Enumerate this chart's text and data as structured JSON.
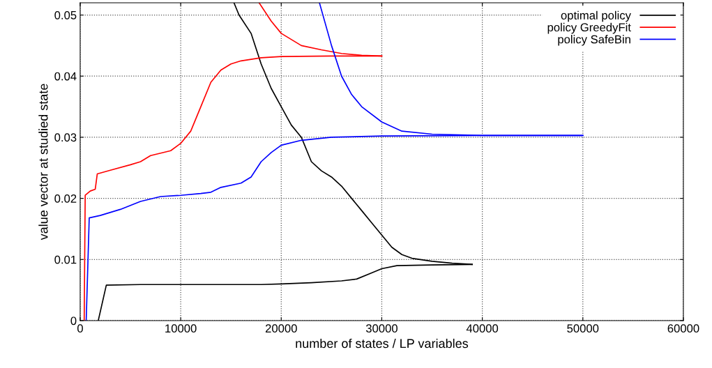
{
  "chart_data": {
    "type": "line",
    "xlabel": "number of states / LP variables",
    "ylabel": "value vector at studied state",
    "xlim": [
      0,
      60000
    ],
    "ylim": [
      0,
      0.052
    ],
    "xticks": [
      0,
      10000,
      20000,
      30000,
      40000,
      50000,
      60000
    ],
    "yticks": [
      {
        "value": 0,
        "label": "0"
      },
      {
        "value": 0.01,
        "label": "0.01"
      },
      {
        "value": 0.02,
        "label": "0.02"
      },
      {
        "value": 0.03,
        "label": "0.03"
      },
      {
        "value": 0.04,
        "label": "0.04"
      },
      {
        "value": 0.05,
        "label": "0.05"
      }
    ],
    "grid": true,
    "legend": "top right",
    "line_style": "solid",
    "marker": "none",
    "series": [
      {
        "name": "optimal policy",
        "color": "#000000",
        "x": [
          1800,
          2600,
          6000,
          10000,
          15000,
          18000,
          20000,
          23000,
          26000,
          27500,
          29000,
          30000,
          31500,
          35000,
          39000
        ],
        "values": [
          0,
          0.0058,
          0.0059,
          0.0059,
          0.0059,
          0.0059,
          0.006,
          0.0062,
          0.0065,
          0.0068,
          0.0078,
          0.0085,
          0.009,
          0.0091,
          0.0092
        ]
      },
      {
        "color": "#000000",
        "x": [
          15300,
          15800,
          17000,
          18000,
          19000,
          20000,
          21000,
          22000,
          23000,
          24000,
          25000,
          26000,
          27000,
          28000,
          29000,
          30000,
          31000,
          32000,
          33000,
          35000,
          37000,
          39000
        ],
        "values": [
          0.052,
          0.05,
          0.047,
          0.042,
          0.038,
          0.035,
          0.032,
          0.03,
          0.026,
          0.0245,
          0.0235,
          0.022,
          0.02,
          0.018,
          0.016,
          0.014,
          0.012,
          0.0108,
          0.0102,
          0.0097,
          0.0094,
          0.0092
        ]
      },
      {
        "name": "policy GreedyFit",
        "color": "#ff0000",
        "x": [
          400,
          500,
          1000,
          1500,
          1700,
          3000,
          5000,
          6000,
          7000,
          9000,
          10000,
          11000,
          12000,
          13000,
          14000,
          15000,
          16000,
          18000,
          20000,
          25000,
          30000
        ],
        "values": [
          0,
          0.0205,
          0.0212,
          0.0215,
          0.024,
          0.0246,
          0.0255,
          0.026,
          0.027,
          0.0278,
          0.029,
          0.031,
          0.035,
          0.039,
          0.041,
          0.042,
          0.0425,
          0.043,
          0.0432,
          0.0433,
          0.0433
        ]
      },
      {
        "color": "#ff0000",
        "x": [
          17800,
          19000,
          20000,
          22000,
          24000,
          26000,
          28000,
          30000
        ],
        "values": [
          0.052,
          0.049,
          0.047,
          0.045,
          0.0443,
          0.0437,
          0.0434,
          0.0433
        ]
      },
      {
        "name": "policy SafeBin",
        "color": "#0000ff",
        "x": [
          600,
          900,
          2000,
          4000,
          6000,
          8000,
          10000,
          12000,
          13000,
          14000,
          16000,
          17000,
          18000,
          19000,
          20000,
          22000,
          25000,
          30000,
          40000,
          50000
        ],
        "values": [
          0,
          0.0168,
          0.0172,
          0.0182,
          0.0195,
          0.0203,
          0.0205,
          0.0208,
          0.021,
          0.0218,
          0.0225,
          0.0235,
          0.026,
          0.0275,
          0.0287,
          0.0295,
          0.03,
          0.0302,
          0.0303,
          0.0303
        ]
      },
      {
        "color": "#0000ff",
        "x": [
          23800,
          25000,
          26000,
          27000,
          28000,
          30000,
          32000,
          35000,
          40000,
          50000
        ],
        "values": [
          0.052,
          0.045,
          0.04,
          0.037,
          0.035,
          0.0325,
          0.031,
          0.0305,
          0.0303,
          0.0303
        ]
      }
    ]
  }
}
